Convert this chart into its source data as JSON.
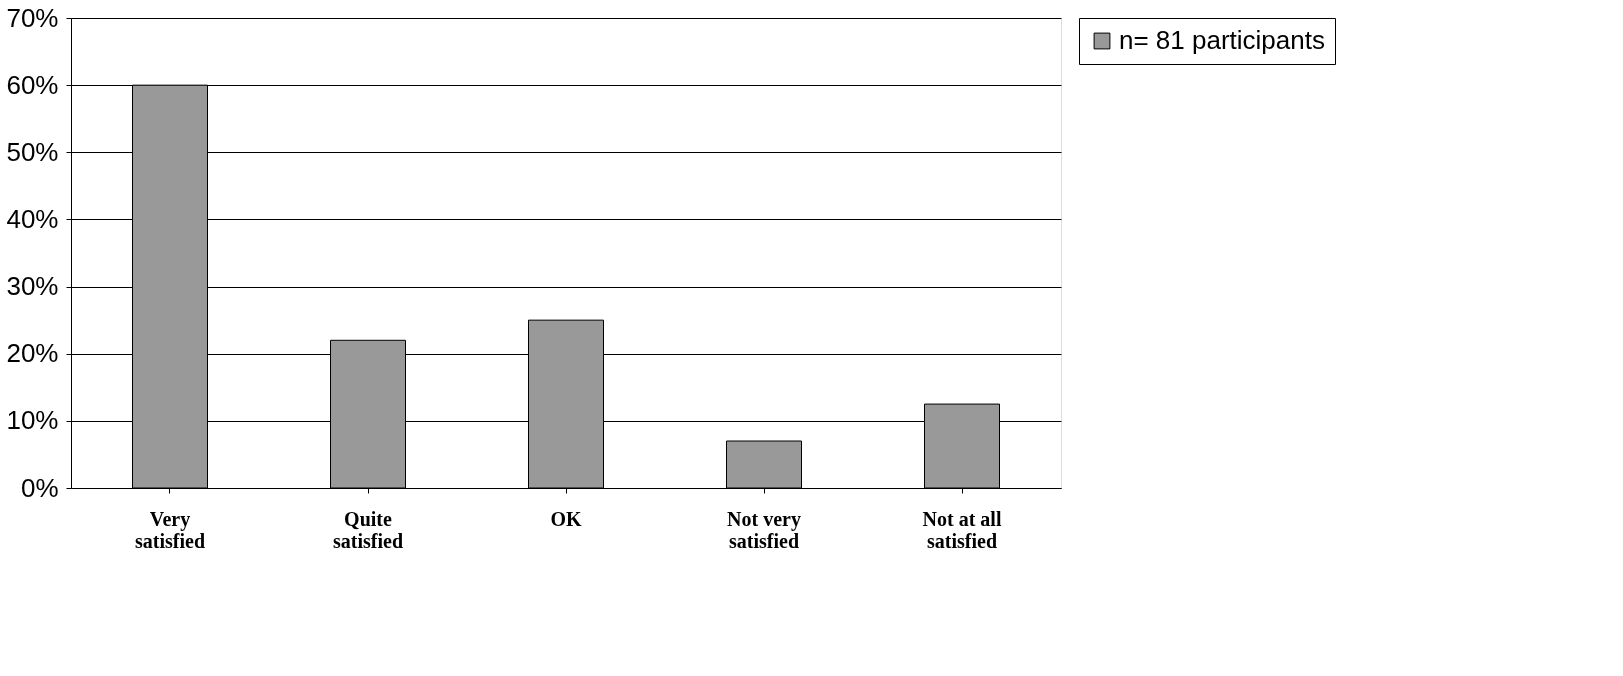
{
  "chart_data": {
    "type": "bar",
    "categories": [
      "Very satisfied",
      "Quite satisfied",
      "OK",
      "Not very satisfied",
      "Not at all satisfied"
    ],
    "series": [
      {
        "name": "n= 81 participants",
        "color": "#999999",
        "values": [
          60,
          22,
          25,
          7,
          12.5
        ]
      }
    ],
    "ylim": [
      0,
      70
    ],
    "yticks": [
      {
        "value": 0,
        "label": "0%"
      },
      {
        "value": 10,
        "label": "10%"
      },
      {
        "value": 20,
        "label": "20%"
      },
      {
        "value": 30,
        "label": "30%"
      },
      {
        "value": 40,
        "label": "40%"
      },
      {
        "value": 50,
        "label": "50%"
      },
      {
        "value": 60,
        "label": "60%"
      },
      {
        "value": 70,
        "label": "70%"
      }
    ],
    "grid": "y",
    "legend": "right"
  }
}
